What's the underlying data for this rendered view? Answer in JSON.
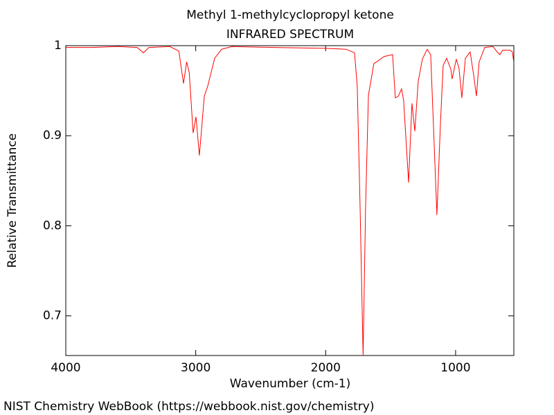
{
  "chart_data": {
    "type": "line",
    "title": "Methyl 1-methylcyclopropyl ketone",
    "subtitle": "INFRARED SPECTRUM",
    "x_label": "Wavenumber (cm-1)",
    "y_label": "Relative Transmittance",
    "source": "NIST Chemistry WebBook (https://webbook.nist.gov/chemistry)",
    "color": "#ff0000",
    "x": [
      4000,
      3800,
      3600,
      3450,
      3403,
      3360,
      3200,
      3130,
      3094,
      3070,
      3050,
      3020,
      2998,
      2972,
      2934,
      2908,
      2854,
      2801,
      2721,
      2400,
      2000,
      1842,
      1778,
      1757,
      1735,
      1712,
      1693,
      1671,
      1629,
      1549,
      1485,
      1464,
      1440,
      1416,
      1400,
      1362,
      1336,
      1314,
      1288,
      1256,
      1219,
      1192,
      1171,
      1144,
      1117,
      1096,
      1069,
      1037,
      1027,
      995,
      974,
      952,
      925,
      888,
      861,
      840,
      819,
      776,
      712,
      680,
      659,
      638,
      584,
      563,
      552
    ],
    "values": [
      0.998,
      0.998,
      0.999,
      0.998,
      0.992,
      0.998,
      0.999,
      0.994,
      0.958,
      0.982,
      0.97,
      0.903,
      0.921,
      0.878,
      0.944,
      0.955,
      0.986,
      0.996,
      0.999,
      0.998,
      0.997,
      0.996,
      0.992,
      0.955,
      0.82,
      0.656,
      0.82,
      0.945,
      0.98,
      0.988,
      0.99,
      0.942,
      0.944,
      0.952,
      0.939,
      0.848,
      0.936,
      0.905,
      0.96,
      0.985,
      0.996,
      0.99,
      0.913,
      0.812,
      0.913,
      0.978,
      0.986,
      0.974,
      0.963,
      0.985,
      0.975,
      0.942,
      0.986,
      0.993,
      0.967,
      0.944,
      0.982,
      0.998,
      0.999,
      0.993,
      0.99,
      0.995,
      0.995,
      0.993,
      0.981
    ],
    "xlim": [
      4000,
      552
    ],
    "ylim": [
      0.656,
      1
    ],
    "xticks": [
      4000,
      3000,
      2000,
      1000
    ],
    "yticks": [
      0.7,
      0.8,
      0.9,
      1
    ]
  }
}
